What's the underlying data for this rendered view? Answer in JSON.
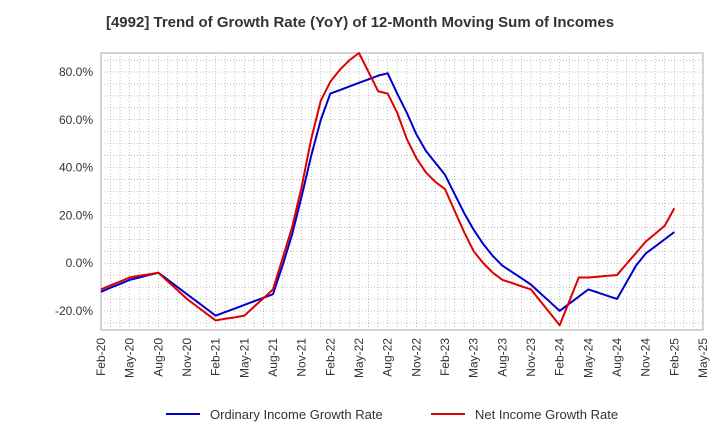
{
  "chart_data": {
    "type": "line",
    "title": "[4992]  Trend of Growth Rate (YoY) of 12-Month Moving Sum of Incomes",
    "xlabel": "",
    "ylabel": "",
    "ylim": [
      -28,
      88
    ],
    "grid": true,
    "legend_position": "bottom",
    "y_ticks": [
      {
        "value": 80,
        "label": "80.0%"
      },
      {
        "value": 60,
        "label": "60.0%"
      },
      {
        "value": 40,
        "label": "40.0%"
      },
      {
        "value": 20,
        "label": "20.0%"
      },
      {
        "value": 0,
        "label": "0.0%"
      },
      {
        "value": -20,
        "label": "-20.0%"
      }
    ],
    "x_tick_labels": [
      "Feb-20",
      "May-20",
      "Aug-20",
      "Nov-20",
      "Feb-21",
      "May-21",
      "Aug-21",
      "Nov-21",
      "Feb-22",
      "May-22",
      "Aug-22",
      "Nov-22",
      "Feb-23",
      "May-23",
      "Aug-23",
      "Nov-23",
      "Feb-24",
      "May-24",
      "Aug-24",
      "Nov-24",
      "Feb-25",
      "May-25"
    ],
    "x": [
      "Feb-20",
      "Mar-20",
      "Apr-20",
      "May-20",
      "Jun-20",
      "Jul-20",
      "Aug-20",
      "Sep-20",
      "Oct-20",
      "Nov-20",
      "Dec-20",
      "Jan-21",
      "Feb-21",
      "Mar-21",
      "Apr-21",
      "May-21",
      "Jun-21",
      "Jul-21",
      "Aug-21",
      "Sep-21",
      "Oct-21",
      "Nov-21",
      "Dec-21",
      "Jan-22",
      "Feb-22",
      "Mar-22",
      "Apr-22",
      "May-22",
      "Jun-22",
      "Jul-22",
      "Aug-22",
      "Sep-22",
      "Oct-22",
      "Nov-22",
      "Dec-22",
      "Jan-23",
      "Feb-23",
      "Mar-23",
      "Apr-23",
      "May-23",
      "Jun-23",
      "Jul-23",
      "Aug-23",
      "Sep-23",
      "Oct-23",
      "Nov-23",
      "Dec-23",
      "Jan-24",
      "Feb-24",
      "Mar-24",
      "Apr-24",
      "May-24",
      "Jun-24",
      "Jul-24",
      "Aug-24",
      "Sep-24",
      "Oct-24",
      "Nov-24",
      "Dec-24",
      "Jan-25",
      "Feb-25"
    ],
    "series": [
      {
        "name": "Ordinary Income Growth Rate",
        "color": "#0000cc",
        "values": [
          -12,
          -10.3,
          -8.7,
          -7,
          -6,
          -5,
          -4,
          -7,
          -10,
          -13,
          -16,
          -19,
          -22,
          -20.5,
          -19,
          -17.5,
          -16,
          -14.5,
          -13,
          -1,
          12,
          28,
          45,
          60,
          71,
          72.5,
          74,
          75.5,
          77,
          78.5,
          79.5,
          71,
          63,
          54,
          47,
          42,
          37,
          29,
          21,
          14,
          8,
          3,
          -1,
          -3.7,
          -6.3,
          -9,
          -12.7,
          -16.3,
          -20,
          -17,
          -14,
          -11,
          -12.3,
          -13.7,
          -15,
          -8,
          -1,
          4,
          7,
          10,
          13
        ]
      },
      {
        "name": "Net Income Growth Rate",
        "color": "#dd0000",
        "values": [
          -11,
          -9.3,
          -7.7,
          -6,
          -5.3,
          -4.7,
          -4,
          -7.7,
          -11.3,
          -15,
          -18,
          -21,
          -24,
          -23.3,
          -22.7,
          -22,
          -18.3,
          -14.7,
          -11,
          2,
          15,
          32,
          52,
          68,
          76,
          81,
          85,
          88,
          80,
          72,
          71,
          63,
          52,
          44,
          38,
          34,
          31,
          22,
          13,
          5,
          0,
          -4,
          -7,
          -8.3,
          -9.7,
          -11,
          -16,
          -21,
          -26,
          -16,
          -6,
          -6,
          -5.7,
          -5.3,
          -5,
          -0.3,
          4.3,
          9,
          12.3,
          15.7,
          23
        ]
      }
    ]
  }
}
